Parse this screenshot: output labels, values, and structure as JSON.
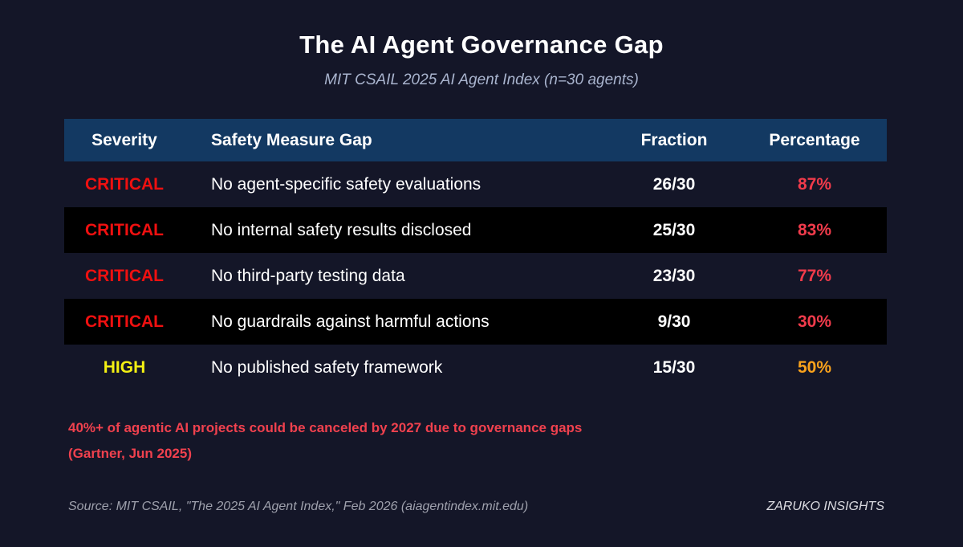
{
  "page": {
    "title": "The AI Agent Governance Gap",
    "subtitle": "MIT CSAIL 2025 AI Agent Index (n=30 agents)"
  },
  "table": {
    "headers": {
      "severity": "Severity",
      "gap": "Safety Measure Gap",
      "fraction": "Fraction",
      "percentage": "Percentage"
    },
    "rows": [
      {
        "severity": "CRITICAL",
        "severity_level": "critical",
        "gap": "No agent-specific safety evaluations",
        "fraction": "26/30",
        "percentage": "87%"
      },
      {
        "severity": "CRITICAL",
        "severity_level": "critical",
        "gap": "No internal safety results disclosed",
        "fraction": "25/30",
        "percentage": "83%"
      },
      {
        "severity": "CRITICAL",
        "severity_level": "critical",
        "gap": "No third-party testing data",
        "fraction": "23/30",
        "percentage": "77%"
      },
      {
        "severity": "CRITICAL",
        "severity_level": "critical",
        "gap": "No guardrails against harmful actions",
        "fraction": "9/30",
        "percentage": "30%"
      },
      {
        "severity": "HIGH",
        "severity_level": "high",
        "gap": "No published safety framework",
        "fraction": "15/30",
        "percentage": "50%"
      }
    ]
  },
  "note": {
    "line1": "40%+ of agentic AI projects could be canceled by 2027 due to governance gaps",
    "line2": "(Gartner, Jun 2025)"
  },
  "footer": {
    "source": "Source: MIT CSAIL, \"The 2025 AI Agent Index,\" Feb 2026 (aiagentindex.mit.edu)",
    "brand": "ZARUKO INSIGHTS"
  },
  "colors": {
    "background": "#141628",
    "table_header_bg": "#133962",
    "row_alt_black": "#000000",
    "severity_critical": "#ef1010",
    "severity_high": "#f3f013",
    "percentage_red": "#f03b4b",
    "percentage_orange": "#f9a21c",
    "note_red": "#f0414e",
    "subtitle_blue": "#a9b4ce",
    "source_gray": "#9ea0ac",
    "text_white": "#ffffff"
  },
  "chart_data": {
    "type": "table",
    "title": "The AI Agent Governance Gap",
    "subtitle": "MIT CSAIL 2025 AI Agent Index (n=30 agents)",
    "columns": [
      "Severity",
      "Safety Measure Gap",
      "Fraction",
      "Percentage"
    ],
    "rows": [
      [
        "CRITICAL",
        "No agent-specific safety evaluations",
        "26/30",
        "87%"
      ],
      [
        "CRITICAL",
        "No internal safety results disclosed",
        "25/30",
        "83%"
      ],
      [
        "CRITICAL",
        "No third-party testing data",
        "23/30",
        "77%"
      ],
      [
        "CRITICAL",
        "No guardrails against harmful actions",
        "9/30",
        "30%"
      ],
      [
        "HIGH",
        "No published safety framework",
        "15/30",
        "50%"
      ]
    ],
    "numeric": {
      "categories": [
        "No agent-specific safety evaluations",
        "No internal safety results disclosed",
        "No third-party testing data",
        "No guardrails against harmful actions",
        "No published safety framework"
      ],
      "counts": [
        26,
        25,
        23,
        9,
        15
      ],
      "denominator": 30,
      "percentages": [
        87,
        83,
        77,
        30,
        50
      ]
    },
    "annotations": [
      "40%+ of agentic AI projects could be canceled by 2027 due to governance gaps (Gartner, Jun 2025)"
    ],
    "source": "Source: MIT CSAIL, \"The 2025 AI Agent Index,\" Feb 2026 (aiagentindex.mit.edu)"
  }
}
